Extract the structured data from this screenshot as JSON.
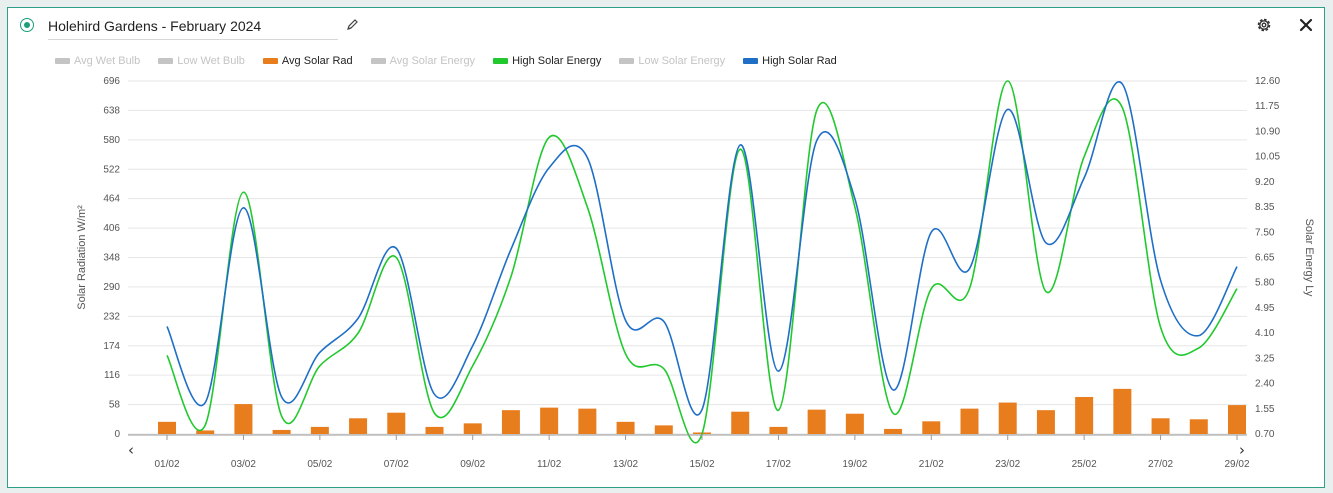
{
  "header": {
    "title": "Holehird Gardens - February 2024",
    "edit_icon": "pencil-icon",
    "settings_icon": "gear-icon",
    "close_icon": "close-icon"
  },
  "legend": [
    {
      "label": "Avg Wet Bulb",
      "color": "#c4c4c4",
      "visible": false
    },
    {
      "label": "Low Wet Bulb",
      "color": "#c4c4c4",
      "visible": false
    },
    {
      "label": "Avg Solar Rad",
      "color": "#e87d1e",
      "visible": true
    },
    {
      "label": "Avg Solar Energy",
      "color": "#c4c4c4",
      "visible": false
    },
    {
      "label": "High Solar Energy",
      "color": "#22c92e",
      "visible": true
    },
    {
      "label": "Low Solar Energy",
      "color": "#c4c4c4",
      "visible": false
    },
    {
      "label": "High Solar Rad",
      "color": "#1f6fc7",
      "visible": true
    }
  ],
  "nav": {
    "prev": "‹",
    "next": "›"
  },
  "chart_data": {
    "type": "bar+line",
    "days": [
      1,
      2,
      3,
      4,
      5,
      6,
      7,
      8,
      9,
      10,
      11,
      12,
      13,
      14,
      15,
      16,
      17,
      18,
      19,
      20,
      21,
      22,
      23,
      24,
      25,
      26,
      27,
      28,
      29
    ],
    "x_tick_labels": [
      "01/02",
      "03/02",
      "05/02",
      "07/02",
      "09/02",
      "11/02",
      "13/02",
      "15/02",
      "17/02",
      "19/02",
      "21/02",
      "23/02",
      "25/02",
      "27/02",
      "29/02"
    ],
    "y_left": {
      "label": "Solar Radiation W/m²",
      "min": 0,
      "max": 696,
      "ticks": [
        0,
        58,
        116,
        174,
        232,
        290,
        348,
        406,
        464,
        522,
        580,
        638,
        696
      ]
    },
    "y_right": {
      "label": "Solar Energy Ly",
      "min": 0.7,
      "max": 12.6,
      "ticks": [
        "0.70",
        "1.55",
        "2.40",
        "3.25",
        "4.10",
        "4.95",
        "5.80",
        "6.65",
        "7.50",
        "8.35",
        "9.20",
        "10.05",
        "10.90",
        "11.75",
        "12.60"
      ]
    },
    "grid": true,
    "series": [
      {
        "name": "Avg Solar Rad",
        "type": "bar",
        "axis": "left",
        "color": "#e87d1e",
        "values": [
          24,
          7,
          59,
          8,
          14,
          31,
          42,
          14,
          21,
          47,
          52,
          50,
          24,
          17,
          3,
          44,
          14,
          48,
          40,
          10,
          25,
          50,
          62,
          47,
          73,
          89,
          31,
          29,
          57
        ]
      },
      {
        "name": "High Solar Energy",
        "type": "line",
        "axis": "right",
        "color": "#22c92e",
        "values": [
          3.35,
          1.0,
          8.85,
          1.3,
          3.0,
          4.1,
          6.65,
          1.4,
          3.0,
          6.0,
          10.7,
          8.35,
          3.4,
          2.9,
          0.7,
          10.3,
          1.5,
          11.6,
          8.35,
          1.4,
          5.6,
          5.6,
          12.6,
          5.5,
          10.05,
          11.7,
          4.3,
          3.6,
          5.6
        ]
      },
      {
        "name": "High Solar Rad",
        "type": "line",
        "axis": "left",
        "color": "#1f6fc7",
        "values": [
          212,
          62,
          446,
          73,
          161,
          228,
          366,
          78,
          174,
          364,
          525,
          545,
          224,
          222,
          48,
          570,
          124,
          578,
          464,
          87,
          398,
          326,
          640,
          377,
          505,
          690,
          303,
          194,
          330
        ]
      }
    ]
  }
}
